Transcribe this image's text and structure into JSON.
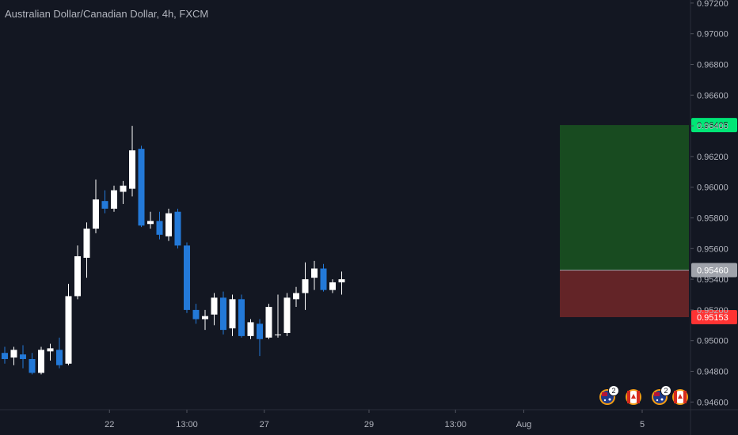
{
  "chart_data": {
    "type": "candlestick",
    "title": "Australian Dollar/Canadian Dollar, 4h, FXCM",
    "y_axis": {
      "range": [
        0.9455,
        0.9722
      ],
      "ticks": [
        "0.97200",
        "0.97000",
        "0.96800",
        "0.96600",
        "0.96400",
        "0.96200",
        "0.96000",
        "0.95800",
        "0.95600",
        "0.95400",
        "0.95200",
        "0.95000",
        "0.94800",
        "0.94600"
      ],
      "tick_values": [
        0.972,
        0.97,
        0.968,
        0.966,
        0.964,
        0.962,
        0.96,
        0.958,
        0.956,
        0.954,
        0.952,
        0.95,
        0.948,
        0.946
      ]
    },
    "x_axis": {
      "labels": [
        {
          "text": "22",
          "bar": 11.5
        },
        {
          "text": "13:00",
          "bar": 20
        },
        {
          "text": "27",
          "bar": 28.5
        },
        {
          "text": "29",
          "bar": 40
        },
        {
          "text": "13:00",
          "bar": 49.5
        },
        {
          "text": "Aug",
          "bar": 57
        },
        {
          "text": "5",
          "bar": 70
        }
      ]
    },
    "bull_color": "#ffffff",
    "bear_color": "#2379d8",
    "candles": [
      {
        "o": 0.9492,
        "h": 0.9496,
        "l": 0.9485,
        "c": 0.9488
      },
      {
        "o": 0.9489,
        "h": 0.9496,
        "l": 0.9484,
        "c": 0.9494
      },
      {
        "o": 0.9491,
        "h": 0.9497,
        "l": 0.9482,
        "c": 0.9488
      },
      {
        "o": 0.9488,
        "h": 0.9492,
        "l": 0.9478,
        "c": 0.9479
      },
      {
        "o": 0.9479,
        "h": 0.9496,
        "l": 0.9478,
        "c": 0.9494
      },
      {
        "o": 0.9493,
        "h": 0.9498,
        "l": 0.9487,
        "c": 0.9495
      },
      {
        "o": 0.9494,
        "h": 0.9502,
        "l": 0.9482,
        "c": 0.9484
      },
      {
        "o": 0.9485,
        "h": 0.9537,
        "l": 0.9484,
        "c": 0.9529
      },
      {
        "o": 0.9529,
        "h": 0.9562,
        "l": 0.9527,
        "c": 0.9555
      },
      {
        "o": 0.9554,
        "h": 0.9577,
        "l": 0.9541,
        "c": 0.9573
      },
      {
        "o": 0.9573,
        "h": 0.9605,
        "l": 0.957,
        "c": 0.9592
      },
      {
        "o": 0.9591,
        "h": 0.9598,
        "l": 0.9583,
        "c": 0.9586
      },
      {
        "o": 0.9586,
        "h": 0.9601,
        "l": 0.9584,
        "c": 0.9598
      },
      {
        "o": 0.9597,
        "h": 0.9604,
        "l": 0.9589,
        "c": 0.9601
      },
      {
        "o": 0.9599,
        "h": 0.964,
        "l": 0.9594,
        "c": 0.9624
      },
      {
        "o": 0.9625,
        "h": 0.9627,
        "l": 0.9574,
        "c": 0.9575
      },
      {
        "o": 0.9576,
        "h": 0.9584,
        "l": 0.9573,
        "c": 0.9578
      },
      {
        "o": 0.9578,
        "h": 0.9584,
        "l": 0.9566,
        "c": 0.9569
      },
      {
        "o": 0.9568,
        "h": 0.9586,
        "l": 0.9565,
        "c": 0.9583
      },
      {
        "o": 0.9584,
        "h": 0.9586,
        "l": 0.956,
        "c": 0.9562
      },
      {
        "o": 0.9562,
        "h": 0.9564,
        "l": 0.9518,
        "c": 0.952
      },
      {
        "o": 0.952,
        "h": 0.9524,
        "l": 0.9511,
        "c": 0.9514
      },
      {
        "o": 0.9514,
        "h": 0.952,
        "l": 0.9507,
        "c": 0.9516
      },
      {
        "o": 0.9517,
        "h": 0.9531,
        "l": 0.951,
        "c": 0.9528
      },
      {
        "o": 0.9528,
        "h": 0.9532,
        "l": 0.9504,
        "c": 0.9507
      },
      {
        "o": 0.9508,
        "h": 0.953,
        "l": 0.9503,
        "c": 0.9527
      },
      {
        "o": 0.9527,
        "h": 0.953,
        "l": 0.9502,
        "c": 0.9503
      },
      {
        "o": 0.9503,
        "h": 0.9514,
        "l": 0.9501,
        "c": 0.9512
      },
      {
        "o": 0.9511,
        "h": 0.9514,
        "l": 0.949,
        "c": 0.9501
      },
      {
        "o": 0.9502,
        "h": 0.9524,
        "l": 0.9501,
        "c": 0.9522
      },
      {
        "o": 0.9504,
        "h": 0.953,
        "l": 0.9502,
        "c": 0.9504
      },
      {
        "o": 0.9505,
        "h": 0.9531,
        "l": 0.9503,
        "c": 0.9528
      },
      {
        "o": 0.9527,
        "h": 0.9535,
        "l": 0.9522,
        "c": 0.9531
      },
      {
        "o": 0.9531,
        "h": 0.9551,
        "l": 0.952,
        "c": 0.954
      },
      {
        "o": 0.9541,
        "h": 0.9552,
        "l": 0.9533,
        "c": 0.9547
      },
      {
        "o": 0.9547,
        "h": 0.955,
        "l": 0.9532,
        "c": 0.9533
      },
      {
        "o": 0.9533,
        "h": 0.954,
        "l": 0.9531,
        "c": 0.9538
      },
      {
        "o": 0.9538,
        "h": 0.9545,
        "l": 0.953,
        "c": 0.954
      }
    ],
    "extra_candles_note": "",
    "long_position": {
      "entry_price": 0.9546,
      "target_price": 0.96405,
      "stop_price": 0.95153,
      "entry_label": "0.95460",
      "target_label": "0.96405",
      "stop_label": "0.95153",
      "profit_color": "#1b5e20",
      "loss_color": "#7f2a2a",
      "target_tag_color": "#00e676",
      "stop_tag_color": "#ff3333",
      "entry_tag_color": "#a0a3ab"
    },
    "events": [
      {
        "flag": "australia",
        "badge": "2"
      },
      {
        "flag": "canada",
        "badge": ""
      },
      {
        "flag": "australia",
        "badge": "2"
      },
      {
        "flag": "canada",
        "badge": ""
      }
    ]
  }
}
